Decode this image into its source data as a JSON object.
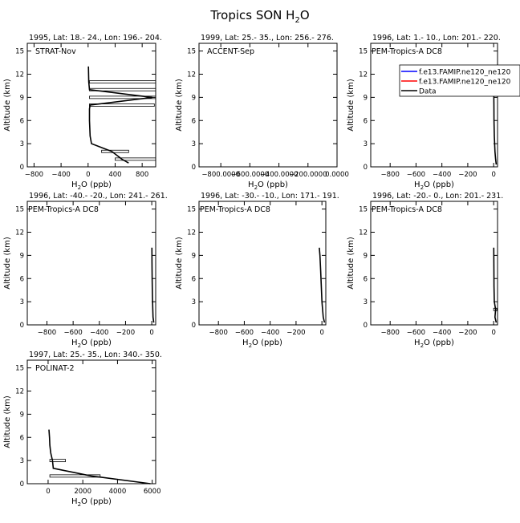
{
  "figure": {
    "title_main": "Tropics SON H",
    "title_sub": "2",
    "title_tail": "O"
  },
  "legend": {
    "entries": [
      {
        "label": "f.e13.FAMIP.ne120_ne120",
        "color": "#0000ff"
      },
      {
        "label": "f.e13.FAMIP.ne120_ne120",
        "color": "#ff0000"
      },
      {
        "label": "Data",
        "color": "#000000"
      }
    ]
  },
  "chart_data": [
    {
      "type": "line",
      "header": "1995, Lat: 18.- 24., Lon: 196.- 204.",
      "campaign": "STRAT-Nov",
      "xlabel": "H2O (ppb)",
      "ylabel": "Altitude (km)",
      "xlim": [
        -900,
        1000
      ],
      "ylim": [
        0,
        16
      ],
      "xticks": [
        -800,
        -400,
        0,
        400,
        800
      ],
      "xticklabels": [
        "−800",
        "−400",
        "0",
        "400",
        "800"
      ],
      "yticks": [
        0,
        3,
        6,
        9,
        12,
        15
      ],
      "series": [
        {
          "values": [
            [
              600,
              0.5
            ],
            [
              500,
              1
            ],
            [
              350,
              2
            ],
            [
              50,
              3
            ],
            [
              30,
              4
            ],
            [
              20,
              6
            ],
            [
              20,
              7.5
            ],
            [
              30,
              8
            ],
            [
              950,
              9
            ],
            [
              20,
              10
            ],
            [
              10,
              11
            ],
            [
              5,
              13
            ]
          ]
        }
      ],
      "ranges": [
        [
          400,
          1000,
          1
        ],
        [
          200,
          600,
          2
        ],
        [
          20,
          980,
          8
        ],
        [
          20,
          1000,
          9
        ],
        [
          20,
          1000,
          10
        ],
        [
          20,
          1000,
          11
        ]
      ]
    },
    {
      "type": "line",
      "header": "1999, Lat: 25.- 35., Lon: 256.- 276.",
      "campaign": "ACCENT-Sep",
      "xlabel": "H2O (ppb)",
      "ylabel": "Altitude (km)",
      "xlim": [
        -950,
        0
      ],
      "ylim": [
        0,
        16
      ],
      "xticks": [
        -800,
        -600,
        -400,
        -200,
        0
      ],
      "xticklabels": [
        "−800.0000",
        "−600.0000",
        "−400.0000",
        "−200.0000",
        "0.0000"
      ],
      "yticks": [
        0,
        3,
        6,
        9,
        12,
        15
      ],
      "series": [],
      "ranges": []
    },
    {
      "type": "line",
      "header": "1996, Lat: 1.- 10., Lon: 201.- 220.",
      "campaign": "PEM-Tropics-A DC8",
      "xlabel": "H2O (ppb)",
      "ylabel": "Altitude (km)",
      "xlim": [
        -950,
        30
      ],
      "ylim": [
        0,
        16
      ],
      "xticks": [
        -800,
        -600,
        -400,
        -200,
        0
      ],
      "xticklabels": [
        "−800",
        "−600",
        "−400",
        "−200",
        "0"
      ],
      "yticks": [
        0,
        3,
        6,
        9,
        12,
        15
      ],
      "show_legend": true,
      "series": [
        {
          "values": [
            [
              20,
              0.3
            ],
            [
              15,
              1
            ],
            [
              10,
              2
            ],
            [
              5,
              4
            ],
            [
              3,
              6
            ],
            [
              2,
              8
            ],
            [
              1,
              10
            ]
          ]
        }
      ],
      "ranges": []
    },
    {
      "type": "line",
      "header": "1996, Lat: -40.- -20., Lon: 241.- 261.",
      "campaign": "PEM-Tropics-A DC8",
      "xlabel": "H2O (ppb)",
      "ylabel": "Altitude (km)",
      "xlim": [
        -950,
        30
      ],
      "ylim": [
        0,
        16
      ],
      "xticks": [
        -800,
        -600,
        -400,
        -200,
        0
      ],
      "xticklabels": [
        "−800",
        "−600",
        "−400",
        "−200",
        "0"
      ],
      "yticks": [
        0,
        3,
        6,
        9,
        12,
        15
      ],
      "series": [
        {
          "values": [
            [
              15,
              0.3
            ],
            [
              10,
              1
            ],
            [
              8,
              2
            ],
            [
              5,
              4
            ],
            [
              3,
              6
            ],
            [
              2,
              8
            ],
            [
              1,
              10
            ]
          ]
        }
      ],
      "ranges": []
    },
    {
      "type": "line",
      "header": "1996, Lat: -30.- -10., Lon: 171.- 191.",
      "campaign": "PEM-Tropics-A DC8",
      "xlabel": "H2O (ppb)",
      "ylabel": "Altitude (km)",
      "xlim": [
        -950,
        30
      ],
      "ylim": [
        0,
        16
      ],
      "xticks": [
        -800,
        -600,
        -400,
        -200,
        0
      ],
      "xticklabels": [
        "−800",
        "−600",
        "−400",
        "−200",
        "0"
      ],
      "yticks": [
        0,
        3,
        6,
        9,
        12,
        15
      ],
      "series": [
        {
          "values": [
            [
              20,
              0.3
            ],
            [
              10,
              1
            ],
            [
              5,
              2
            ],
            [
              0,
              3
            ],
            [
              -5,
              5
            ],
            [
              -10,
              7
            ],
            [
              -15,
              9
            ],
            [
              -20,
              10
            ]
          ]
        }
      ],
      "ranges": []
    },
    {
      "type": "line",
      "header": "1996, Lat: -20.- 0., Lon: 201.- 231.",
      "campaign": "PEM-Tropics-A DC8",
      "xlabel": "H2O (ppb)",
      "ylabel": "Altitude (km)",
      "xlim": [
        -950,
        30
      ],
      "ylim": [
        0,
        16
      ],
      "xticks": [
        -800,
        -600,
        -400,
        -200,
        0
      ],
      "xticklabels": [
        "−800",
        "−600",
        "−400",
        "−200",
        "0"
      ],
      "yticks": [
        0,
        3,
        6,
        9,
        12,
        15
      ],
      "series": [
        {
          "values": [
            [
              20,
              0.3
            ],
            [
              10,
              1
            ],
            [
              15,
              2
            ],
            [
              5,
              3
            ],
            [
              3,
              5
            ],
            [
              2,
              7
            ],
            [
              1,
              10
            ]
          ]
        }
      ],
      "ranges": [
        [
          0,
          25,
          2
        ]
      ]
    },
    {
      "type": "line",
      "header": "1997, Lat: 25.- 35., Lon: 340.- 350.",
      "campaign": "POLINAT-2",
      "xlabel": "H2O (ppb)",
      "ylabel": "Altitude (km)",
      "xlim": [
        -1200,
        6200
      ],
      "ylim": [
        0,
        16
      ],
      "xticks": [
        0,
        2000,
        4000,
        6000
      ],
      "xticklabels": [
        "0",
        "2000",
        "4000",
        "6000"
      ],
      "yticks": [
        0,
        3,
        6,
        9,
        12,
        15
      ],
      "series": [
        {
          "values": [
            [
              5900,
              0
            ],
            [
              2500,
              1
            ],
            [
              300,
              2
            ],
            [
              250,
              3
            ],
            [
              150,
              4
            ],
            [
              100,
              5
            ],
            [
              80,
              6
            ],
            [
              50,
              7
            ]
          ]
        }
      ],
      "ranges": [
        [
          100,
          3000,
          1
        ],
        [
          100,
          1000,
          3
        ]
      ]
    }
  ]
}
